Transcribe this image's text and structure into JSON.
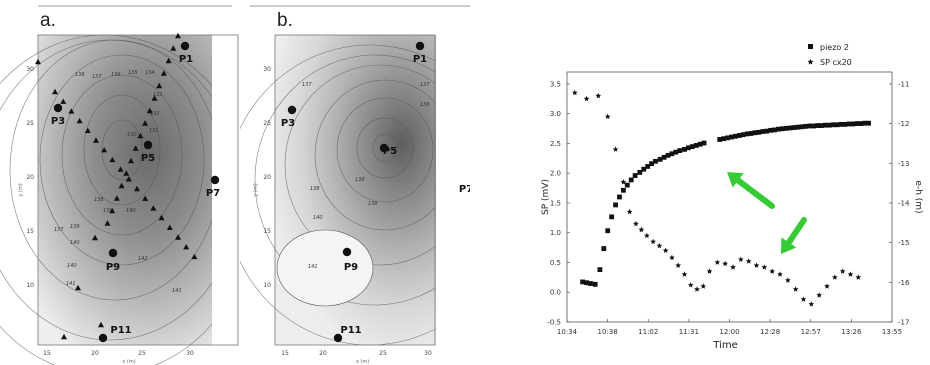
{
  "chart_data": [
    {
      "type": "contour",
      "panel": "a.",
      "x_ticks": [
        "15",
        "20",
        "25",
        "30"
      ],
      "y_ticks": [
        "10",
        "15",
        "20",
        "25",
        "30"
      ],
      "xlabel": "x (m)",
      "ylabel": "y (m)",
      "wells": [
        "P1",
        "P3",
        "P5",
        "P7",
        "P9",
        "P11"
      ],
      "contour_labels": [
        "138",
        "137",
        "136",
        "135",
        "134",
        "133",
        "132",
        "131",
        "130",
        "139",
        "140",
        "141",
        "142"
      ]
    },
    {
      "type": "contour",
      "panel": "b.",
      "x_ticks": [
        "15",
        "20",
        "25",
        "30"
      ],
      "y_ticks": [
        "10",
        "15",
        "20",
        "25",
        "30"
      ],
      "xlabel": "x (m)",
      "ylabel": "y (m)",
      "wells": [
        "P1",
        "P3",
        "P5",
        "P7",
        "P9",
        "P11"
      ],
      "contour_labels": [
        "137",
        "136",
        "138",
        "139",
        "140",
        "141"
      ]
    },
    {
      "type": "scatter",
      "title": "",
      "xlabel": "Time",
      "ylabel": "SP (mV)",
      "y2label": "e-h (m)",
      "x_ticks": [
        "10:34",
        "10:38",
        "11:02",
        "11:31",
        "12:00",
        "12:28",
        "12:57",
        "13:26",
        "13:55"
      ],
      "y_ticks": [
        "-0.5",
        "0.0",
        "0.5",
        "1.0",
        "1.5",
        "2.0",
        "2.5",
        "3.0",
        "3.5"
      ],
      "y2_ticks": [
        "-11",
        "-12",
        "-13",
        "-14",
        "-15",
        "-16",
        "-17"
      ],
      "ylim": [
        -0.5,
        3.7
      ],
      "y2lim": [
        -17,
        -10.7
      ],
      "legend": [
        {
          "name": "piezo 2",
          "marker": "square"
        },
        {
          "name": "SP cx20",
          "marker": "star"
        }
      ],
      "legend_position": "top-right",
      "series": [
        {
          "name": "piezo 2",
          "axis": "right",
          "x": [
            0.2,
            0.25,
            0.3,
            0.36,
            0.42,
            0.47,
            0.52,
            0.57,
            0.62,
            0.67,
            0.72,
            0.77,
            0.82,
            0.87,
            0.93,
            0.98,
            1.03,
            1.08,
            1.13,
            1.19,
            1.24,
            1.29,
            1.34,
            1.39,
            1.44,
            1.5,
            1.55,
            1.6,
            1.65,
            1.7,
            1.75,
            1.8,
            1.85,
            1.9,
            1.95,
            2.0,
            2.05,
            2.1,
            2.15,
            2.2,
            2.25,
            2.3,
            2.35,
            2.4,
            2.45,
            2.5,
            2.55,
            2.6,
            2.65,
            2.7,
            2.75,
            2.8,
            2.85,
            2.9,
            2.95,
            3.0,
            3.05,
            3.1,
            3.15,
            3.2,
            3.25,
            3.3,
            3.35,
            3.4,
            3.45,
            3.5,
            3.55,
            3.6,
            3.65,
            3.7,
            3.75,
            3.8,
            3.85
          ],
          "values": [
            -15.99,
            -16.01,
            -16.03,
            -16.05,
            -15.68,
            -15.15,
            -14.7,
            -14.35,
            -14.05,
            -13.85,
            -13.68,
            -13.55,
            -13.42,
            -13.31,
            -13.23,
            -13.15,
            -13.08,
            -13.01,
            -12.95,
            -12.9,
            -12.85,
            -12.8,
            -12.76,
            -12.72,
            -12.68,
            -12.65,
            -12.61,
            -12.58,
            -12.55,
            -12.52,
            -12.49,
            null,
            null,
            null,
            -12.4,
            -12.38,
            -12.36,
            -12.34,
            -12.32,
            -12.3,
            -12.28,
            -12.26,
            -12.25,
            -12.23,
            -12.22,
            -12.2,
            -12.19,
            -12.17,
            -12.16,
            -12.14,
            -12.13,
            -12.12,
            -12.11,
            -12.1,
            -12.09,
            -12.08,
            -12.07,
            -12.06,
            -12.06,
            -12.05,
            -12.05,
            -12.04,
            -12.04,
            -12.03,
            -12.03,
            -12.02,
            -12.02,
            -12.01,
            -12.01,
            -12.0,
            -12.0,
            -11.99,
            -11.99
          ]
        },
        {
          "name": "SP cx20",
          "axis": "left",
          "x": [
            0.1,
            0.25,
            0.4,
            0.52,
            0.62,
            0.72,
            0.8,
            0.88,
            0.95,
            1.02,
            1.1,
            1.18,
            1.26,
            1.34,
            1.42,
            1.5,
            1.58,
            1.66,
            1.74,
            1.82,
            1.92,
            2.02,
            2.12,
            2.22,
            2.32,
            2.42,
            2.52,
            2.62,
            2.72,
            2.82,
            2.92,
            3.02,
            3.12,
            3.22,
            3.32,
            3.42,
            3.52,
            3.62,
            3.72
          ],
          "values": [
            3.35,
            3.25,
            3.3,
            2.95,
            2.4,
            1.85,
            1.35,
            1.15,
            1.05,
            0.95,
            0.85,
            0.78,
            0.7,
            0.58,
            0.45,
            0.3,
            0.12,
            0.05,
            0.1,
            0.35,
            0.5,
            0.48,
            0.42,
            0.55,
            0.52,
            0.45,
            0.42,
            0.35,
            0.3,
            0.2,
            0.05,
            -0.12,
            -0.2,
            -0.05,
            0.1,
            0.25,
            0.35,
            0.3,
            0.25
          ]
        }
      ],
      "annotations": [
        {
          "type": "arrow",
          "color": "#33cc33",
          "points_to": "piezo 2"
        },
        {
          "type": "arrow",
          "color": "#33cc33",
          "points_to": "SP cx20"
        }
      ]
    }
  ]
}
